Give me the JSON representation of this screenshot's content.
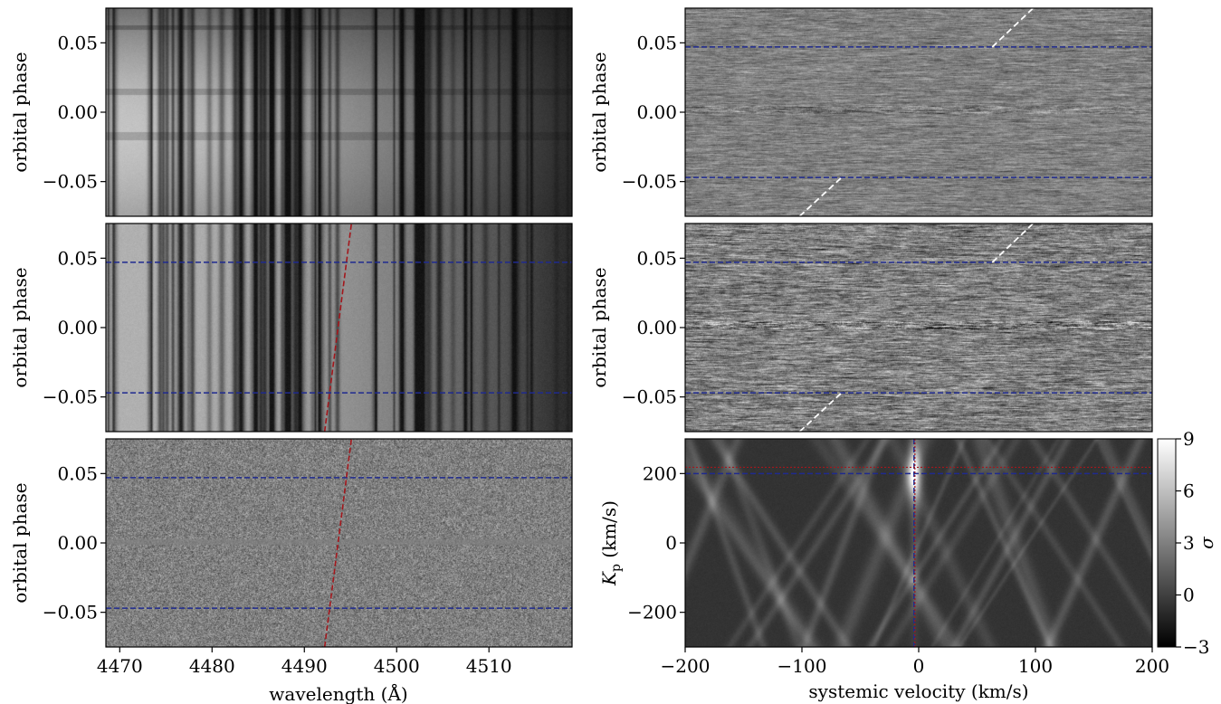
{
  "chart_data": [
    {
      "type": "heatmap",
      "panel": "top-left",
      "content": "raw spectra",
      "ylabel": "orbital phase",
      "ylim": [
        -0.075,
        0.075
      ],
      "yticks": [
        {
          "v": -0.05,
          "t": "−0.05"
        },
        {
          "v": 0.0,
          "t": "0.00"
        },
        {
          "v": 0.05,
          "t": "0.05"
        }
      ],
      "xlim": [
        4468.5,
        4519
      ],
      "colormap": "gray"
    },
    {
      "type": "heatmap",
      "panel": "middle-left",
      "content": "normalized spectra",
      "ylabel": "orbital phase",
      "ylim": [
        -0.075,
        0.075
      ],
      "yticks": [
        {
          "v": -0.05,
          "t": "−0.05"
        },
        {
          "v": 0.0,
          "t": "0.00"
        },
        {
          "v": 0.05,
          "t": "0.05"
        }
      ],
      "xlim": [
        4468.5,
        4519
      ],
      "hlines": [
        -0.047,
        0.047
      ],
      "trail_line": {
        "x": [
          4492.2,
          4495.1
        ],
        "y": [
          -0.075,
          0.075
        ]
      },
      "colormap": "gray"
    },
    {
      "type": "heatmap",
      "panel": "bottom-left",
      "content": "residuals",
      "ylabel": "orbital phase",
      "xlabel": "wavelength (Å)",
      "ylim": [
        -0.075,
        0.075
      ],
      "yticks": [
        {
          "v": -0.05,
          "t": "−0.05"
        },
        {
          "v": 0.0,
          "t": "0.00"
        },
        {
          "v": 0.05,
          "t": "0.05"
        }
      ],
      "xlim": [
        4468.5,
        4519
      ],
      "xticks": [
        {
          "v": 4470,
          "t": "4470"
        },
        {
          "v": 4480,
          "t": "4480"
        },
        {
          "v": 4490,
          "t": "4490"
        },
        {
          "v": 4500,
          "t": "4500"
        },
        {
          "v": 4510,
          "t": "4510"
        }
      ],
      "hlines": [
        -0.047,
        0.047
      ],
      "trail_line": {
        "x": [
          4492.2,
          4495.1
        ],
        "y": [
          -0.075,
          0.075
        ]
      },
      "colormap": "gray"
    },
    {
      "type": "heatmap",
      "panel": "top-right",
      "content": "cross-correlation map",
      "ylabel": "orbital phase",
      "ylim": [
        -0.075,
        0.075
      ],
      "yticks": [
        {
          "v": -0.05,
          "t": "−0.05"
        },
        {
          "v": 0.0,
          "t": "0.00"
        },
        {
          "v": 0.05,
          "t": "0.05"
        }
      ],
      "xlim": [
        -200,
        200
      ],
      "hlines": [
        -0.047,
        0.047
      ],
      "trail_segments": [
        {
          "x": [
            -102,
            -66
          ],
          "y": [
            -0.075,
            -0.047
          ]
        },
        {
          "x": [
            63,
            98
          ],
          "y": [
            0.047,
            0.075
          ]
        }
      ],
      "colormap": "gray"
    },
    {
      "type": "heatmap",
      "panel": "middle-right",
      "content": "cross-correlation map",
      "ylabel": "orbital phase",
      "ylim": [
        -0.075,
        0.075
      ],
      "yticks": [
        {
          "v": -0.05,
          "t": "−0.05"
        },
        {
          "v": 0.0,
          "t": "0.00"
        },
        {
          "v": 0.05,
          "t": "0.05"
        }
      ],
      "xlim": [
        -200,
        200
      ],
      "hlines": [
        -0.047,
        0.047
      ],
      "trail_segments": [
        {
          "x": [
            -102,
            -66
          ],
          "y": [
            -0.075,
            -0.047
          ]
        },
        {
          "x": [
            63,
            98
          ],
          "y": [
            0.047,
            0.075
          ]
        }
      ],
      "colormap": "gray"
    },
    {
      "type": "heatmap",
      "panel": "bottom-right",
      "content": "Kp-Vsys significance map",
      "xlabel": "systemic velocity (km/s)",
      "ylabel_main": "K",
      "ylabel_sub": "p",
      "ylabel_unit": " (km/s)",
      "xlim": [
        -200,
        200
      ],
      "ylim": [
        -300,
        300
      ],
      "xticks": [
        {
          "v": -200,
          "t": "−200"
        },
        {
          "v": -100,
          "t": "−100"
        },
        {
          "v": 0,
          "t": "0"
        },
        {
          "v": 100,
          "t": "100"
        },
        {
          "v": 200,
          "t": "200"
        }
      ],
      "yticks": [
        {
          "v": -200,
          "t": "−200"
        },
        {
          "v": 0,
          "t": "0"
        },
        {
          "v": 200,
          "t": "200"
        }
      ],
      "peak": {
        "vsys": -4,
        "kp": 200,
        "sigma": 9
      },
      "model": {
        "vsys": -4,
        "kp": 218
      },
      "colorbar": {
        "label": "σ",
        "range": [
          -3,
          9
        ],
        "ticks": [
          {
            "v": -3,
            "t": "−3"
          },
          {
            "v": 0,
            "t": "0"
          },
          {
            "v": 3,
            "t": "3"
          },
          {
            "v": 6,
            "t": "6"
          },
          {
            "v": 9,
            "t": "9"
          }
        ]
      },
      "colormap": "gray"
    }
  ],
  "colors": {
    "blue_line": "#1f2a8f",
    "red_line": "#a3171c",
    "white_line": "#ffffff",
    "axes": "#000000"
  }
}
